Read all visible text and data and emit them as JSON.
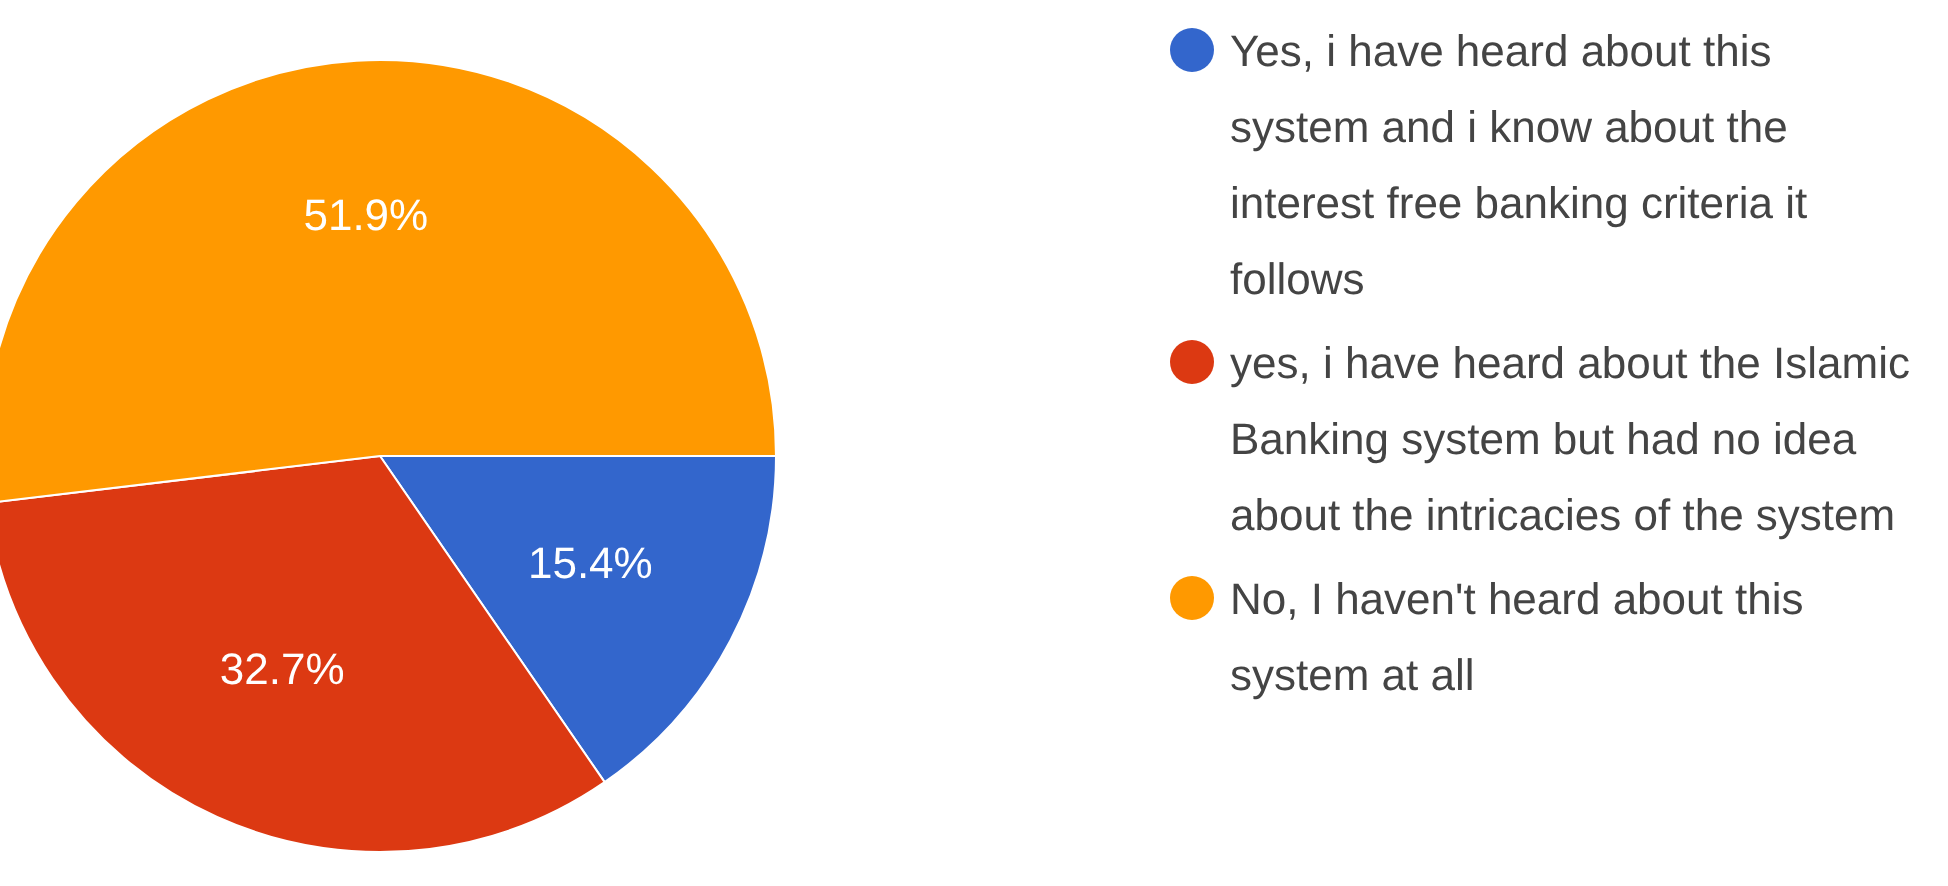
{
  "chart_data": {
    "type": "pie",
    "categories": [
      "Yes, i have heard about this system and i know about the interest free banking criteria it follows",
      "yes, i have heard about the Islamic Banking system but had no idea about the intricacies of the system",
      "No, I haven't heard about this system at all"
    ],
    "values": [
      15.4,
      32.7,
      51.9
    ],
    "colors": [
      "#3366cc",
      "#dc3912",
      "#ff9900"
    ],
    "value_labels": [
      "15.4%",
      "32.7%",
      "51.9%"
    ],
    "legend": "right"
  }
}
